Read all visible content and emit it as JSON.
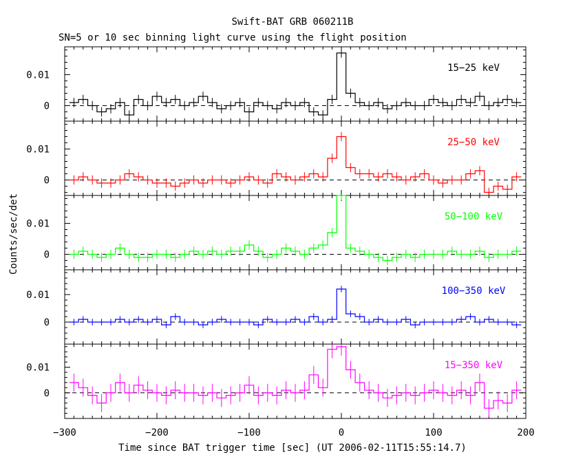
{
  "title": "Swift-BAT GRB 060211B",
  "subtitle": "SN=5 or 10 sec binning light curve using the flight position",
  "xlabel": "Time since BAT trigger time [sec] (UT 2006-02-11T15:55:14.7)",
  "ylabel": "Counts/sec/det",
  "chart_data": [
    {
      "type": "line",
      "name": "15-25 keV",
      "label": "15−25 keV",
      "color": "#000000",
      "xlim": [
        -300,
        200
      ],
      "ylim": [
        -0.005,
        0.019
      ],
      "yticks": [
        0,
        0.01
      ],
      "ytick_labels": [
        "0",
        "0.01"
      ],
      "step": "histogram",
      "x": [
        -290,
        -280,
        -270,
        -260,
        -250,
        -240,
        -230,
        -220,
        -210,
        -200,
        -190,
        -180,
        -170,
        -160,
        -150,
        -140,
        -130,
        -120,
        -110,
        -100,
        -90,
        -80,
        -70,
        -60,
        -50,
        -40,
        -30,
        -20,
        -10,
        0,
        10,
        20,
        30,
        40,
        50,
        60,
        70,
        80,
        90,
        100,
        110,
        120,
        130,
        140,
        150,
        160,
        170,
        180,
        190
      ],
      "y": [
        0.001,
        0.002,
        0.0,
        -0.002,
        -0.001,
        0.001,
        -0.003,
        0.002,
        0.0,
        0.003,
        0.001,
        0.002,
        0.0,
        0.001,
        0.003,
        0.001,
        -0.001,
        0.0,
        0.001,
        -0.002,
        0.001,
        0.0,
        -0.001,
        0.001,
        0.0,
        0.001,
        -0.002,
        -0.003,
        0.002,
        0.017,
        0.004,
        0.001,
        0.0,
        0.001,
        -0.001,
        0.0,
        0.001,
        0.0,
        0.0,
        0.002,
        0.001,
        0.0,
        0.002,
        0.001,
        0.003,
        0.0,
        0.001,
        0.002,
        0.001
      ],
      "err": 0.0015
    },
    {
      "type": "line",
      "name": "25-50 keV",
      "label": "25−50 keV",
      "color": "#ff0000",
      "xlim": [
        -300,
        200
      ],
      "ylim": [
        -0.005,
        0.019
      ],
      "yticks": [
        0,
        0.01
      ],
      "ytick_labels": [
        "0",
        "0.01"
      ],
      "step": "histogram",
      "x": [
        -290,
        -280,
        -270,
        -260,
        -250,
        -240,
        -230,
        -220,
        -210,
        -200,
        -190,
        -180,
        -170,
        -160,
        -150,
        -140,
        -130,
        -120,
        -110,
        -100,
        -90,
        -80,
        -70,
        -60,
        -50,
        -40,
        -30,
        -20,
        -10,
        0,
        10,
        20,
        30,
        40,
        50,
        60,
        70,
        80,
        90,
        100,
        110,
        120,
        130,
        140,
        150,
        160,
        170,
        180,
        190
      ],
      "y": [
        0.0,
        0.001,
        0.0,
        -0.001,
        -0.001,
        0.0,
        0.002,
        0.001,
        0.0,
        -0.001,
        -0.001,
        -0.002,
        -0.001,
        0.0,
        -0.001,
        0.0,
        0.0,
        -0.001,
        0.0,
        0.001,
        0.0,
        -0.001,
        0.002,
        0.001,
        0.0,
        0.001,
        0.002,
        0.001,
        0.007,
        0.014,
        0.004,
        0.002,
        0.002,
        0.001,
        0.002,
        0.001,
        0.0,
        0.001,
        0.002,
        0.0,
        -0.001,
        0.0,
        0.0,
        0.002,
        0.003,
        -0.004,
        -0.002,
        -0.003,
        0.001
      ],
      "err": 0.0015
    },
    {
      "type": "line",
      "name": "50-100 keV",
      "label": "50−100 keV",
      "color": "#00ff00",
      "xlim": [
        -300,
        200
      ],
      "ylim": [
        -0.005,
        0.019
      ],
      "yticks": [
        0,
        0.01
      ],
      "ytick_labels": [
        "0",
        "0.01"
      ],
      "step": "histogram",
      "x": [
        -290,
        -280,
        -270,
        -260,
        -250,
        -240,
        -230,
        -220,
        -210,
        -200,
        -190,
        -180,
        -170,
        -160,
        -150,
        -140,
        -130,
        -120,
        -110,
        -100,
        -90,
        -80,
        -70,
        -60,
        -50,
        -40,
        -30,
        -20,
        -10,
        0,
        10,
        20,
        30,
        40,
        50,
        60,
        70,
        80,
        90,
        100,
        110,
        120,
        130,
        140,
        150,
        160,
        170,
        180,
        190
      ],
      "y": [
        0.0,
        0.001,
        0.0,
        -0.001,
        0.0,
        0.002,
        0.0,
        -0.001,
        -0.001,
        0.0,
        0.0,
        -0.001,
        0.0,
        0.001,
        0.0,
        0.001,
        0.0,
        0.001,
        0.001,
        0.003,
        0.001,
        -0.001,
        0.0,
        0.002,
        0.001,
        0.0,
        0.002,
        0.003,
        0.007,
        0.019,
        0.002,
        0.001,
        0.0,
        -0.001,
        -0.002,
        -0.001,
        0.0,
        -0.001,
        0.0,
        0.0,
        0.0,
        0.001,
        0.0,
        0.0,
        0.001,
        -0.001,
        0.0,
        0.0,
        0.001
      ],
      "err": 0.0015
    },
    {
      "type": "line",
      "name": "100-350 keV",
      "label": "100−350 keV",
      "color": "#0000ff",
      "xlim": [
        -300,
        200
      ],
      "ylim": [
        -0.008,
        0.019
      ],
      "yticks": [
        0,
        0.01
      ],
      "ytick_labels": [
        "0",
        "0.01"
      ],
      "step": "histogram",
      "x": [
        -290,
        -280,
        -270,
        -260,
        -250,
        -240,
        -230,
        -220,
        -210,
        -200,
        -190,
        -180,
        -170,
        -160,
        -150,
        -140,
        -130,
        -120,
        -110,
        -100,
        -90,
        -80,
        -70,
        -60,
        -50,
        -40,
        -30,
        -20,
        -10,
        0,
        10,
        20,
        30,
        40,
        50,
        60,
        70,
        80,
        90,
        100,
        110,
        120,
        130,
        140,
        150,
        160,
        170,
        180,
        190
      ],
      "y": [
        0.0,
        0.001,
        0.0,
        0.0,
        0.0,
        0.001,
        0.0,
        0.001,
        0.0,
        0.001,
        -0.001,
        0.002,
        0.0,
        0.0,
        -0.001,
        0.0,
        0.001,
        0.0,
        0.0,
        0.0,
        -0.001,
        0.001,
        0.0,
        0.0,
        0.001,
        0.0,
        0.002,
        0.0,
        0.001,
        0.012,
        0.003,
        0.002,
        0.0,
        0.001,
        0.0,
        0.0,
        0.001,
        -0.001,
        0.0,
        0.0,
        0.0,
        0.0,
        0.001,
        0.002,
        0.0,
        0.001,
        0.0,
        0.0,
        -0.001
      ],
      "err": 0.0012
    },
    {
      "type": "line",
      "name": "15-350 keV",
      "label": "15−350 keV",
      "color": "#ff00ff",
      "xlim": [
        -300,
        200
      ],
      "ylim": [
        -0.01,
        0.019
      ],
      "yticks": [
        0,
        0.01
      ],
      "ytick_labels": [
        "0",
        "0.01"
      ],
      "step": "histogram",
      "x": [
        -290,
        -280,
        -270,
        -260,
        -250,
        -240,
        -230,
        -220,
        -210,
        -200,
        -190,
        -180,
        -170,
        -160,
        -150,
        -140,
        -130,
        -120,
        -110,
        -100,
        -90,
        -80,
        -70,
        -60,
        -50,
        -40,
        -30,
        -20,
        -10,
        0,
        10,
        20,
        30,
        40,
        50,
        60,
        70,
        80,
        90,
        100,
        110,
        120,
        130,
        140,
        150,
        160,
        170,
        180,
        190
      ],
      "y": [
        0.004,
        0.002,
        -0.001,
        -0.004,
        0.0,
        0.004,
        0.0,
        0.003,
        0.001,
        0.0,
        -0.001,
        0.001,
        0.0,
        0.0,
        -0.001,
        0.0,
        -0.002,
        -0.001,
        0.0,
        0.003,
        -0.001,
        0.0,
        -0.001,
        0.001,
        0.0,
        0.001,
        0.007,
        0.002,
        0.017,
        0.018,
        0.009,
        0.004,
        0.001,
        0.0,
        -0.002,
        -0.001,
        0.0,
        -0.001,
        0.0,
        0.001,
        0.0,
        -0.001,
        0.001,
        -0.001,
        0.004,
        -0.006,
        -0.003,
        -0.004,
        0.001
      ],
      "err": 0.0035
    }
  ],
  "xticks": [
    -300,
    -200,
    -100,
    0,
    100,
    200
  ],
  "xtick_labels": [
    "−300",
    "−200",
    "−100",
    "0",
    "100",
    "200"
  ]
}
